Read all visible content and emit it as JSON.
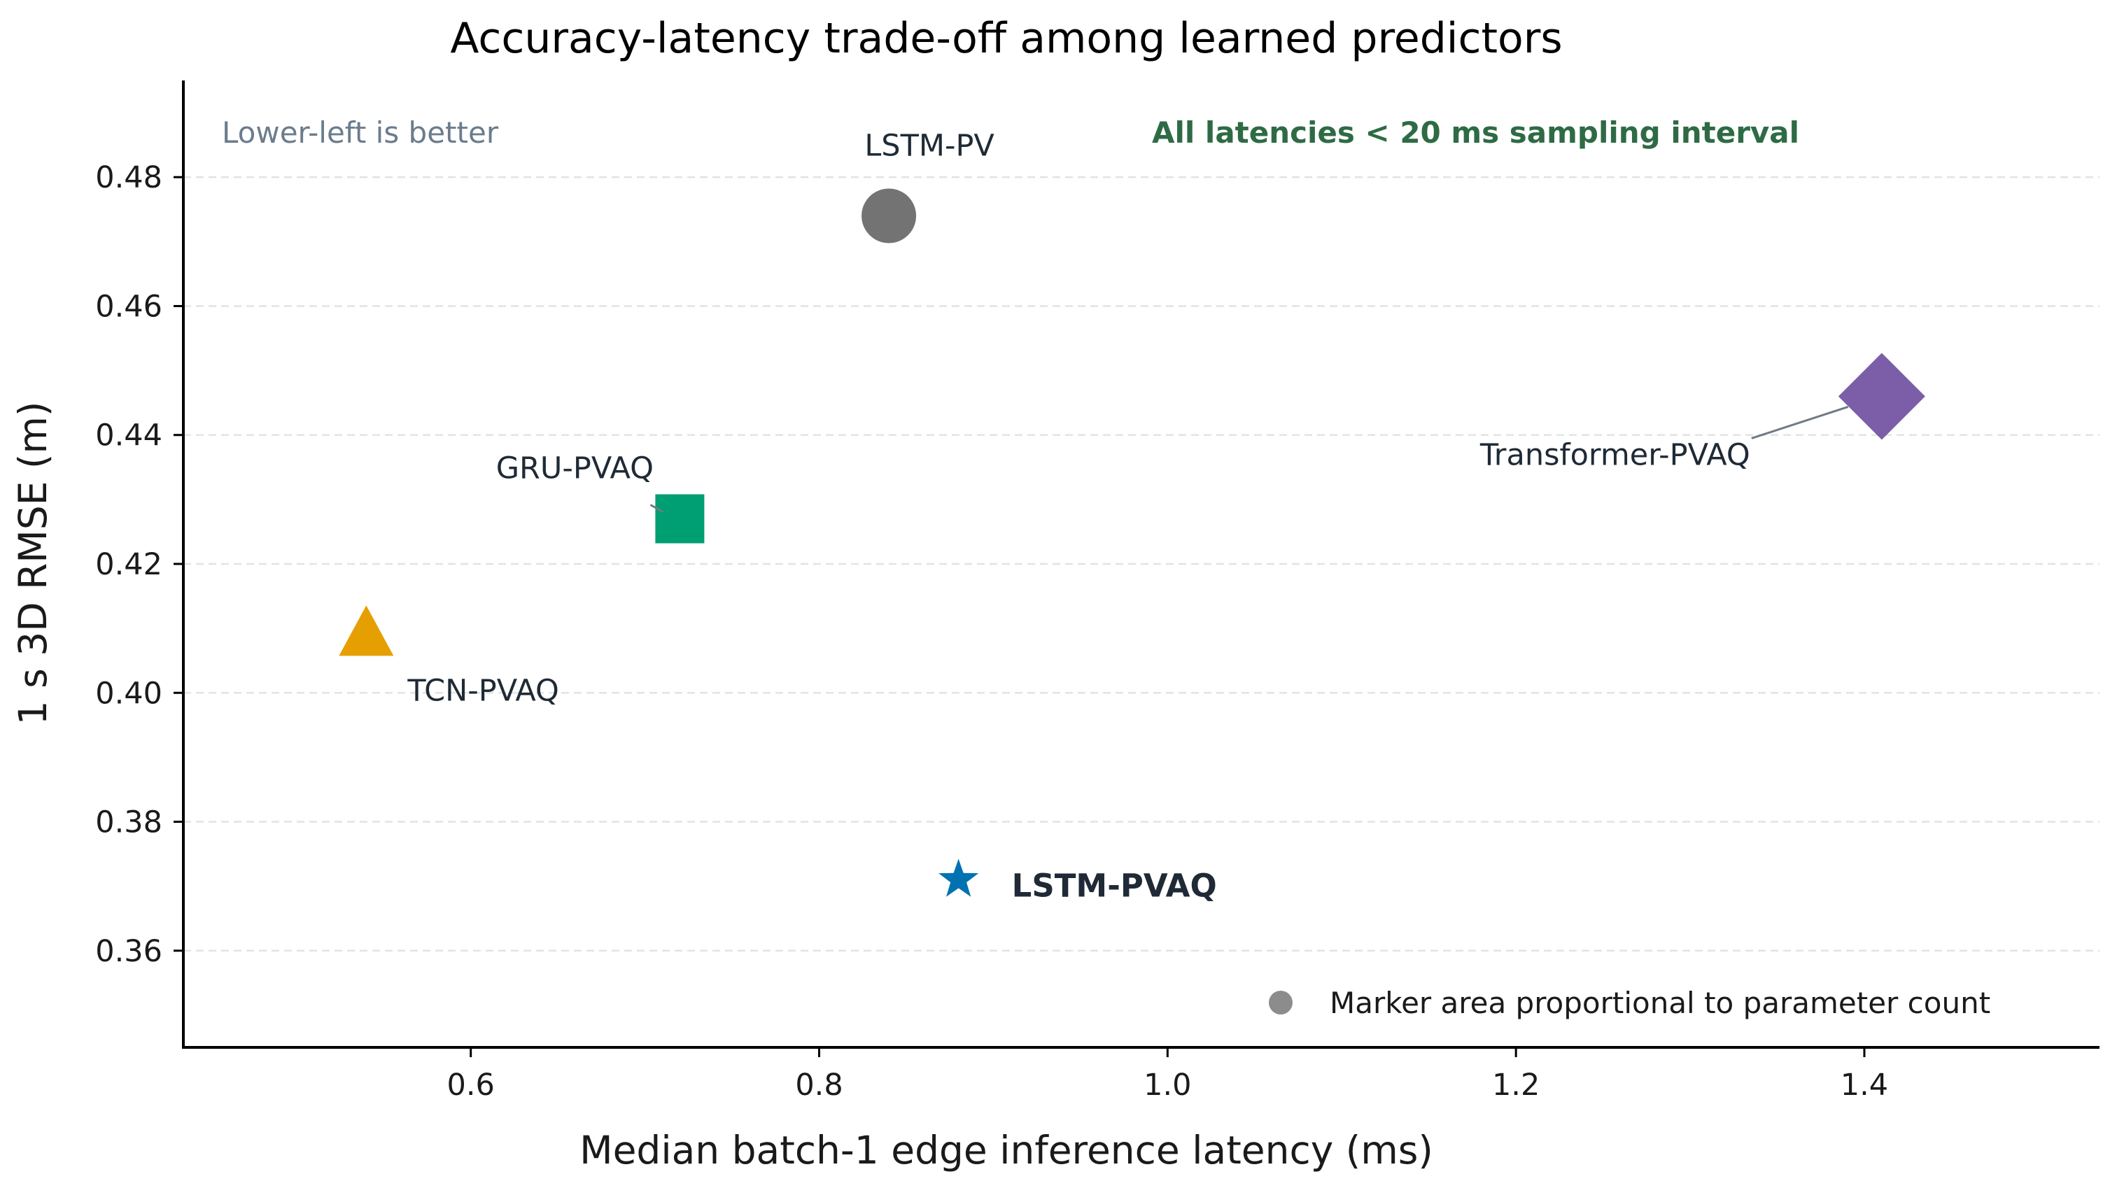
{
  "chart_data": {
    "type": "scatter",
    "title": "Accuracy-latency trade-off among learned predictors",
    "xlabel": "Median batch-1 edge inference latency (ms)",
    "ylabel": "1 s 3D RMSE (m)",
    "xlim": [
      0.435,
      1.535
    ],
    "ylim": [
      0.345,
      0.495
    ],
    "xticks": [
      0.6,
      0.8,
      1.0,
      1.2,
      1.4
    ],
    "xtick_labels": [
      "0.6",
      "0.8",
      "1.0",
      "1.2",
      "1.4"
    ],
    "yticks": [
      0.36,
      0.38,
      0.4,
      0.42,
      0.44,
      0.46,
      0.48
    ],
    "ytick_labels": [
      "0.36",
      "0.38",
      "0.40",
      "0.42",
      "0.44",
      "0.46",
      "0.48"
    ],
    "grid": "y-dashed",
    "points": [
      {
        "name": "LSTM-PV",
        "x": 0.84,
        "y": 0.474,
        "marker": "circle",
        "color": "#737373",
        "label_bold": false
      },
      {
        "name": "GRU-PVAQ",
        "x": 0.72,
        "y": 0.427,
        "marker": "square",
        "color": "#009e73",
        "label_bold": false
      },
      {
        "name": "TCN-PVAQ",
        "x": 0.54,
        "y": 0.409,
        "marker": "triangle",
        "color": "#e69f00",
        "label_bold": false
      },
      {
        "name": "Transformer-PVAQ",
        "x": 1.41,
        "y": 0.446,
        "marker": "diamond",
        "color": "#7b5ea7",
        "label_bold": false
      },
      {
        "name": "LSTM-PVAQ",
        "x": 0.88,
        "y": 0.371,
        "marker": "star",
        "color": "#0072b2",
        "label_bold": true
      }
    ],
    "annotations": {
      "top_left": "Lower-left is better",
      "top_right": "All latencies < 20 ms sampling interval"
    },
    "legend": {
      "text": "Marker area proportional to parameter count",
      "marker_color": "#8c8c8c",
      "placement": "lower-right"
    }
  }
}
